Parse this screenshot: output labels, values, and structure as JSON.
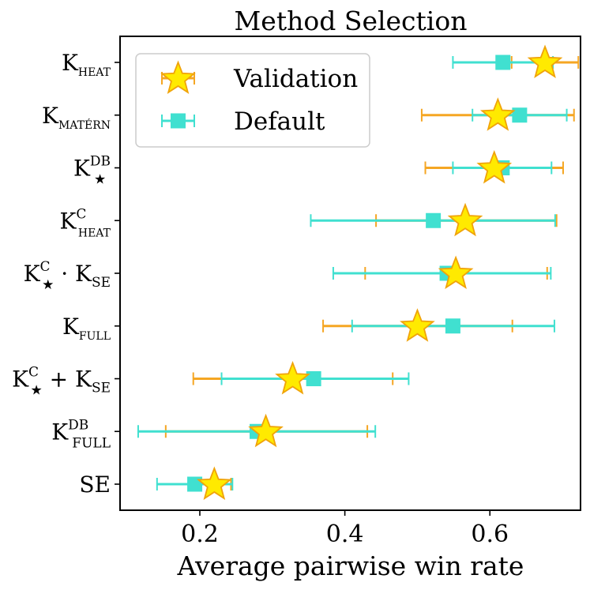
{
  "chart_data": {
    "type": "errorbar",
    "title": "Method Selection",
    "xlabel": "Average pairwise win rate",
    "ylabel": "",
    "xlim": [
      0.09,
      0.725
    ],
    "xticks": [
      {
        "value": 0.2,
        "label": "0.2"
      },
      {
        "value": 0.4,
        "label": "0.4"
      },
      {
        "value": 0.6,
        "label": "0.6"
      }
    ],
    "grid": false,
    "legend_position": "top-left",
    "categories": [
      {
        "base": "K",
        "sub": "HEAT",
        "sup": "",
        "smallcaps": true
      },
      {
        "base": "K",
        "sub": "MATÉRN",
        "sup": "",
        "smallcaps": true
      },
      {
        "base": "K",
        "sub": "★",
        "sup": "DB",
        "smallcaps": false
      },
      {
        "base": "K",
        "sub": "HEAT",
        "sup": "C",
        "smallcaps": true
      },
      {
        "base": "K",
        "sub": "★",
        "sup": "C",
        "smallcaps": false,
        "tail_base": " · K",
        "tail_sub": "SE"
      },
      {
        "base": "K",
        "sub": "FULL",
        "sup": "",
        "smallcaps": true
      },
      {
        "base": "K",
        "sub": "★",
        "sup": "C",
        "smallcaps": false,
        "tail_base": " + K",
        "tail_sub": "SE"
      },
      {
        "base": "K",
        "sub": "FULL",
        "sup": "DB",
        "smallcaps": false
      },
      {
        "base": "SE",
        "sub": "",
        "sup": "",
        "smallcaps": false
      }
    ],
    "series": [
      {
        "name": "Validation",
        "marker": "star",
        "color": "#f5a623",
        "fill": "#ffea00",
        "edge": "#f0a30a",
        "values": [
          0.676,
          0.611,
          0.606,
          0.566,
          0.553,
          0.5,
          0.328,
          0.291,
          0.22
        ],
        "low": [
          0.63,
          0.506,
          0.511,
          0.443,
          0.428,
          0.37,
          0.191,
          0.153,
          0.196
        ],
        "high": [
          0.722,
          0.716,
          0.701,
          0.692,
          0.679,
          0.631,
          0.466,
          0.431,
          0.243
        ]
      },
      {
        "name": "Default",
        "marker": "square",
        "color": "#40e0d0",
        "fill": "#40e0d0",
        "edge": "#40e0d0",
        "values": [
          0.618,
          0.641,
          0.617,
          0.522,
          0.541,
          0.549,
          0.357,
          0.279,
          0.193
        ],
        "low": [
          0.549,
          0.576,
          0.549,
          0.353,
          0.384,
          0.41,
          0.23,
          0.115,
          0.141
        ],
        "high": [
          0.687,
          0.706,
          0.685,
          0.69,
          0.684,
          0.689,
          0.488,
          0.442,
          0.245
        ]
      }
    ]
  }
}
